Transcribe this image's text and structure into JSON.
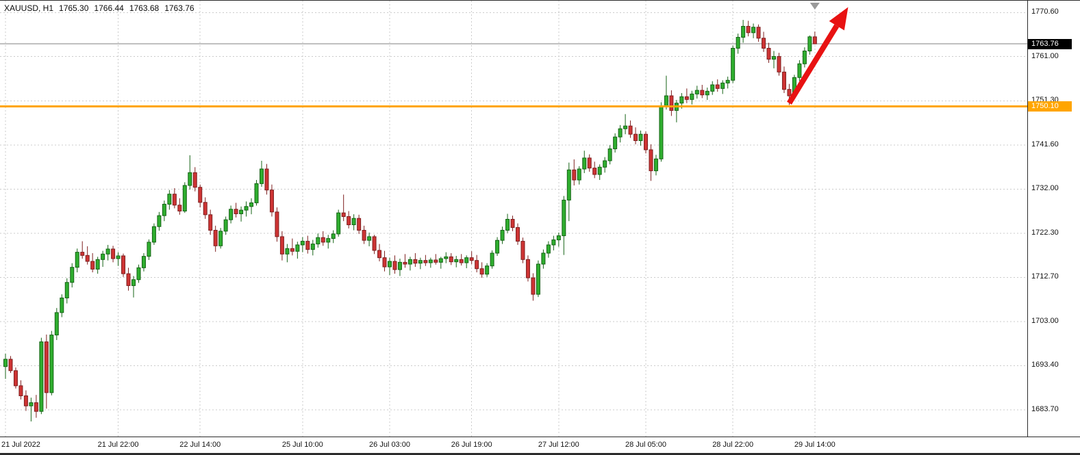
{
  "header": {
    "symbol_period": "XAUUSD, H1",
    "open": "1765.30",
    "high": "1766.44",
    "low": "1763.68",
    "close": "1763.76"
  },
  "colors": {
    "background": "#FFFFFF",
    "grid": "#CBCBCB",
    "bull": "#2FAE2F",
    "bull_border": "#156315",
    "bear": "#CE3434",
    "bear_border": "#7E1F1F",
    "hline": "#FFA500",
    "current_price_line": "#808080",
    "arrow": "#E81212",
    "shift_marker": "#9A9A9A",
    "tag_current_bg": "#000000",
    "tag_hline_bg": "#FFA500",
    "tag_text": "#FFFFFF"
  },
  "chart_data": {
    "type": "candlestick",
    "symbol": "XAUUSD",
    "timeframe": "H1",
    "title": "XAUUSD H1 candlestick chart",
    "grid": true,
    "legend_position": "none",
    "ylim": [
      1677.9,
      1773.2
    ],
    "y_ticks": [
      1770.6,
      1761.0,
      1751.3,
      1741.6,
      1732.0,
      1722.3,
      1712.7,
      1703.0,
      1693.4,
      1683.7
    ],
    "x_labels": [
      {
        "bar": 0,
        "label": "21 Jul 2022"
      },
      {
        "bar": 22,
        "label": "21 Jul 22:00"
      },
      {
        "bar": 38,
        "label": "22 Jul 14:00"
      },
      {
        "bar": 58,
        "label": "25 Jul 10:00"
      },
      {
        "bar": 75,
        "label": "26 Jul 03:00"
      },
      {
        "bar": 91,
        "label": "26 Jul 19:00"
      },
      {
        "bar": 108,
        "label": "27 Jul 12:00"
      },
      {
        "bar": 125,
        "label": "28 Jul 05:00"
      },
      {
        "bar": 142,
        "label": "28 Jul 22:00"
      },
      {
        "bar": 158,
        "label": "29 Jul 14:00"
      }
    ],
    "current_price": 1763.76,
    "current_price_label": "1763.76",
    "horizontal_line": {
      "price": 1750.1,
      "label": "1750.10"
    },
    "annotations": {
      "trend_arrow": {
        "from_bar": 153,
        "from_price": 1750.8,
        "to_bar": 164.5,
        "to_price": 1771.8
      },
      "shift_marker": {
        "bar": 158
      }
    },
    "candles": [
      [
        1693.2,
        1696.0,
        1690.5,
        1694.8
      ],
      [
        1694.8,
        1695.5,
        1691.8,
        1692.3
      ],
      [
        1692.3,
        1693.0,
        1688.4,
        1689.0
      ],
      [
        1689.0,
        1690.2,
        1686.0,
        1686.8
      ],
      [
        1686.8,
        1688.0,
        1683.5,
        1684.6
      ],
      [
        1684.6,
        1686.4,
        1681.2,
        1685.3
      ],
      [
        1685.3,
        1687.0,
        1682.0,
        1683.4
      ],
      [
        1683.4,
        1699.5,
        1682.8,
        1698.6
      ],
      [
        1698.6,
        1700.2,
        1684.0,
        1687.5
      ],
      [
        1687.5,
        1701.0,
        1686.9,
        1700.1
      ],
      [
        1700.1,
        1706.0,
        1699.0,
        1705.0
      ],
      [
        1705.0,
        1709.0,
        1704.0,
        1708.2
      ],
      [
        1708.2,
        1712.5,
        1707.0,
        1711.6
      ],
      [
        1711.6,
        1715.8,
        1710.5,
        1714.9
      ],
      [
        1714.9,
        1719.0,
        1713.8,
        1718.2
      ],
      [
        1718.2,
        1720.6,
        1716.8,
        1717.5
      ],
      [
        1717.5,
        1719.5,
        1715.5,
        1716.2
      ],
      [
        1716.2,
        1718.0,
        1713.8,
        1714.5
      ],
      [
        1714.5,
        1717.2,
        1713.5,
        1716.6
      ],
      [
        1716.6,
        1718.5,
        1715.0,
        1717.8
      ],
      [
        1717.8,
        1719.8,
        1716.4,
        1718.9
      ],
      [
        1718.9,
        1719.6,
        1716.0,
        1716.8
      ],
      [
        1716.8,
        1718.2,
        1715.2,
        1717.4
      ],
      [
        1717.4,
        1717.9,
        1712.8,
        1713.5
      ],
      [
        1713.5,
        1714.8,
        1709.8,
        1710.9
      ],
      [
        1710.9,
        1713.0,
        1708.3,
        1712.2
      ],
      [
        1712.2,
        1715.5,
        1711.5,
        1714.8
      ],
      [
        1714.8,
        1718.0,
        1714.0,
        1717.3
      ],
      [
        1717.3,
        1721.0,
        1716.5,
        1720.4
      ],
      [
        1720.4,
        1724.5,
        1719.8,
        1723.8
      ],
      [
        1723.8,
        1727.0,
        1722.9,
        1726.2
      ],
      [
        1726.2,
        1729.5,
        1725.0,
        1728.7
      ],
      [
        1728.7,
        1731.8,
        1727.5,
        1730.9
      ],
      [
        1730.9,
        1732.2,
        1727.8,
        1728.5
      ],
      [
        1728.5,
        1730.0,
        1726.4,
        1727.2
      ],
      [
        1727.2,
        1733.5,
        1726.8,
        1732.8
      ],
      [
        1732.8,
        1739.4,
        1731.9,
        1735.6
      ],
      [
        1735.6,
        1736.8,
        1731.5,
        1732.4
      ],
      [
        1732.4,
        1733.0,
        1728.0,
        1729.1
      ],
      [
        1729.1,
        1730.2,
        1725.5,
        1726.4
      ],
      [
        1726.4,
        1727.5,
        1722.0,
        1723.0
      ],
      [
        1723.0,
        1724.0,
        1718.3,
        1719.6
      ],
      [
        1719.6,
        1723.5,
        1719.0,
        1722.8
      ],
      [
        1722.8,
        1726.0,
        1722.0,
        1725.3
      ],
      [
        1725.3,
        1728.4,
        1724.5,
        1727.6
      ],
      [
        1727.6,
        1729.0,
        1725.8,
        1726.6
      ],
      [
        1726.6,
        1728.2,
        1724.9,
        1727.4
      ],
      [
        1727.4,
        1729.3,
        1726.0,
        1728.2
      ],
      [
        1728.2,
        1730.0,
        1726.5,
        1729.0
      ],
      [
        1729.0,
        1734.0,
        1728.4,
        1733.2
      ],
      [
        1733.2,
        1738.2,
        1732.5,
        1736.4
      ],
      [
        1736.4,
        1737.5,
        1730.8,
        1731.8
      ],
      [
        1731.8,
        1733.0,
        1726.0,
        1727.0
      ],
      [
        1727.0,
        1728.0,
        1720.5,
        1721.6
      ],
      [
        1721.6,
        1722.8,
        1716.4,
        1717.8
      ],
      [
        1717.8,
        1720.0,
        1716.0,
        1719.0
      ],
      [
        1719.0,
        1721.2,
        1717.5,
        1718.4
      ],
      [
        1718.4,
        1720.5,
        1716.8,
        1719.8
      ],
      [
        1719.8,
        1721.5,
        1718.2,
        1720.6
      ],
      [
        1720.6,
        1721.8,
        1717.9,
        1718.8
      ],
      [
        1718.8,
        1720.9,
        1717.5,
        1720.0
      ],
      [
        1720.0,
        1722.3,
        1719.2,
        1721.4
      ],
      [
        1721.4,
        1722.8,
        1719.6,
        1720.4
      ],
      [
        1720.4,
        1722.0,
        1719.0,
        1721.2
      ],
      [
        1721.2,
        1723.0,
        1720.2,
        1722.2
      ],
      [
        1722.2,
        1727.5,
        1721.6,
        1726.8
      ],
      [
        1726.8,
        1730.8,
        1725.0,
        1726.0
      ],
      [
        1726.0,
        1727.2,
        1723.4,
        1724.2
      ],
      [
        1724.2,
        1726.5,
        1723.0,
        1725.6
      ],
      [
        1725.6,
        1726.4,
        1722.2,
        1723.0
      ],
      [
        1723.0,
        1724.0,
        1720.0,
        1720.8
      ],
      [
        1720.8,
        1722.5,
        1719.5,
        1721.6
      ],
      [
        1721.6,
        1722.0,
        1717.8,
        1718.6
      ],
      [
        1718.6,
        1720.0,
        1716.2,
        1717.0
      ],
      [
        1717.0,
        1718.5,
        1714.0,
        1715.0
      ],
      [
        1715.0,
        1717.0,
        1713.2,
        1716.2
      ],
      [
        1716.2,
        1717.5,
        1713.5,
        1714.4
      ],
      [
        1714.4,
        1716.8,
        1713.0,
        1716.0
      ],
      [
        1716.0,
        1717.8,
        1714.8,
        1715.6
      ],
      [
        1715.6,
        1717.2,
        1714.2,
        1716.6
      ],
      [
        1716.6,
        1718.0,
        1715.0,
        1715.8
      ],
      [
        1715.8,
        1717.0,
        1714.5,
        1716.4
      ],
      [
        1716.4,
        1717.6,
        1715.2,
        1715.9
      ],
      [
        1715.9,
        1717.0,
        1714.8,
        1716.5
      ],
      [
        1716.5,
        1717.8,
        1715.5,
        1716.0
      ],
      [
        1716.0,
        1717.2,
        1714.6,
        1716.8
      ],
      [
        1716.8,
        1718.2,
        1715.8,
        1717.2
      ],
      [
        1717.2,
        1718.0,
        1715.4,
        1716.1
      ],
      [
        1716.1,
        1717.4,
        1714.9,
        1716.6
      ],
      [
        1716.6,
        1717.8,
        1715.3,
        1715.9
      ],
      [
        1715.9,
        1717.5,
        1714.7,
        1717.0
      ],
      [
        1717.0,
        1718.4,
        1715.6,
        1716.4
      ],
      [
        1716.4,
        1717.6,
        1713.8,
        1714.6
      ],
      [
        1714.6,
        1716.0,
        1712.6,
        1713.4
      ],
      [
        1713.4,
        1715.8,
        1712.8,
        1715.2
      ],
      [
        1715.2,
        1718.6,
        1714.6,
        1718.0
      ],
      [
        1718.0,
        1721.5,
        1717.4,
        1720.8
      ],
      [
        1720.8,
        1723.8,
        1720.0,
        1723.0
      ],
      [
        1723.0,
        1726.6,
        1722.4,
        1725.4
      ],
      [
        1725.4,
        1726.2,
        1722.8,
        1723.6
      ],
      [
        1723.6,
        1724.5,
        1719.8,
        1720.6
      ],
      [
        1720.6,
        1721.4,
        1715.8,
        1716.6
      ],
      [
        1716.6,
        1717.5,
        1711.8,
        1712.6
      ],
      [
        1712.6,
        1713.6,
        1707.6,
        1709.0
      ],
      [
        1709.0,
        1716.4,
        1708.4,
        1715.6
      ],
      [
        1715.6,
        1718.8,
        1714.6,
        1718.0
      ],
      [
        1718.0,
        1720.6,
        1717.0,
        1719.8
      ],
      [
        1719.8,
        1721.8,
        1718.6,
        1720.9
      ],
      [
        1720.9,
        1722.5,
        1719.4,
        1721.8
      ],
      [
        1721.8,
        1730.5,
        1717.6,
        1729.6
      ],
      [
        1729.6,
        1737.8,
        1725.0,
        1736.2
      ],
      [
        1736.2,
        1738.5,
        1732.8,
        1734.0
      ],
      [
        1734.0,
        1737.0,
        1733.0,
        1736.4
      ],
      [
        1736.4,
        1740.4,
        1735.5,
        1738.8
      ],
      [
        1738.8,
        1739.6,
        1735.8,
        1736.6
      ],
      [
        1736.6,
        1738.0,
        1734.4,
        1735.2
      ],
      [
        1735.2,
        1737.4,
        1734.0,
        1736.8
      ],
      [
        1736.8,
        1739.0,
        1735.6,
        1738.2
      ],
      [
        1738.2,
        1741.6,
        1737.4,
        1740.8
      ],
      [
        1740.8,
        1744.2,
        1740.0,
        1743.4
      ],
      [
        1743.4,
        1746.0,
        1742.2,
        1745.2
      ],
      [
        1745.2,
        1748.4,
        1744.0,
        1745.8
      ],
      [
        1745.8,
        1747.0,
        1743.2,
        1744.0
      ],
      [
        1744.0,
        1745.5,
        1741.8,
        1742.6
      ],
      [
        1742.6,
        1744.8,
        1741.5,
        1744.0
      ],
      [
        1744.0,
        1744.6,
        1739.8,
        1740.6
      ],
      [
        1740.6,
        1741.8,
        1733.8,
        1736.0
      ],
      [
        1736.0,
        1739.5,
        1735.0,
        1738.6
      ],
      [
        1738.6,
        1751.0,
        1738.0,
        1750.2
      ],
      [
        1750.2,
        1756.8,
        1749.4,
        1752.4
      ],
      [
        1752.4,
        1753.6,
        1748.0,
        1749.2
      ],
      [
        1749.2,
        1751.5,
        1746.6,
        1750.8
      ],
      [
        1750.8,
        1753.0,
        1749.6,
        1752.2
      ],
      [
        1752.2,
        1754.0,
        1750.8,
        1751.6
      ],
      [
        1751.6,
        1753.5,
        1750.5,
        1752.8
      ],
      [
        1752.8,
        1754.6,
        1751.8,
        1753.6
      ],
      [
        1753.6,
        1754.8,
        1751.9,
        1752.6
      ],
      [
        1752.6,
        1754.2,
        1751.5,
        1753.4
      ],
      [
        1753.4,
        1755.6,
        1752.6,
        1754.8
      ],
      [
        1754.8,
        1756.0,
        1753.3,
        1754.0
      ],
      [
        1754.0,
        1755.8,
        1752.8,
        1755.2
      ],
      [
        1755.2,
        1756.6,
        1754.0,
        1755.8
      ],
      [
        1755.8,
        1763.4,
        1755.2,
        1762.8
      ],
      [
        1762.8,
        1766.0,
        1761.6,
        1765.2
      ],
      [
        1765.2,
        1769.0,
        1764.0,
        1767.6
      ],
      [
        1767.6,
        1768.8,
        1765.4,
        1766.2
      ],
      [
        1766.2,
        1768.2,
        1765.0,
        1767.4
      ],
      [
        1767.4,
        1768.0,
        1764.2,
        1765.0
      ],
      [
        1765.0,
        1766.4,
        1762.0,
        1762.8
      ],
      [
        1762.8,
        1764.0,
        1759.6,
        1760.4
      ],
      [
        1760.4,
        1762.2,
        1758.4,
        1761.0
      ],
      [
        1761.0,
        1761.8,
        1756.8,
        1757.6
      ],
      [
        1757.6,
        1758.8,
        1753.0,
        1753.8
      ],
      [
        1753.8,
        1755.0,
        1750.4,
        1752.4
      ],
      [
        1752.4,
        1757.0,
        1751.8,
        1756.4
      ],
      [
        1756.4,
        1760.2,
        1755.6,
        1759.4
      ],
      [
        1759.4,
        1763.0,
        1758.6,
        1762.2
      ],
      [
        1762.2,
        1765.6,
        1761.4,
        1765.3
      ],
      [
        1765.3,
        1766.44,
        1763.68,
        1763.76
      ]
    ]
  }
}
